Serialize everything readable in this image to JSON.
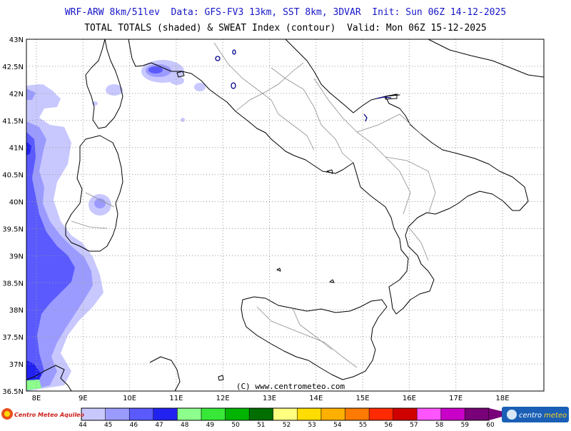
{
  "header": {
    "line1": "WRF-ARW 8km/51lev  Data: GFS-FV3 13km, SST 8km, 3DVAR  Init: Sun 06Z 14-12-2025",
    "line2": "TOTAL TOTALS (shaded) & SWEAT Index (contour)  Valid: Mon 06Z 15-12-2025"
  },
  "map": {
    "lat_labels": [
      "43N",
      "42.5N",
      "42N",
      "41.5N",
      "41N",
      "40.5N",
      "40N",
      "39.5N",
      "39N",
      "38.5N",
      "38N",
      "37.5N",
      "37N",
      "36.5N"
    ],
    "lon_labels": [
      "8E",
      "9E",
      "10E",
      "11E",
      "12E",
      "13E",
      "14E",
      "15E",
      "16E",
      "17E",
      "18E"
    ],
    "copyright": "(C) www.centrometeo.com",
    "colors": {
      "coast": "#000000",
      "borders": "#8c8c8c",
      "grid": "#9a9a9a",
      "sweat_contour": "#00008b"
    }
  },
  "colorbar": {
    "labels": [
      "44",
      "45",
      "46",
      "47",
      "48",
      "49",
      "50",
      "51",
      "52",
      "53",
      "54",
      "55",
      "56",
      "57",
      "58",
      "59",
      "60"
    ],
    "colors": [
      "#c8c8ff",
      "#9b9bff",
      "#5a5aff",
      "#2222f0",
      "#8cff8c",
      "#38e838",
      "#00b400",
      "#006e00",
      "#ffff80",
      "#ffdd00",
      "#ffb000",
      "#ff7a00",
      "#ff2a00",
      "#d00000",
      "#ff55ff",
      "#c800c8",
      "#780078"
    ]
  },
  "logos": {
    "left": "Centro Meteo Aquileo",
    "right_a": "centro",
    "right_b": "meteo"
  }
}
